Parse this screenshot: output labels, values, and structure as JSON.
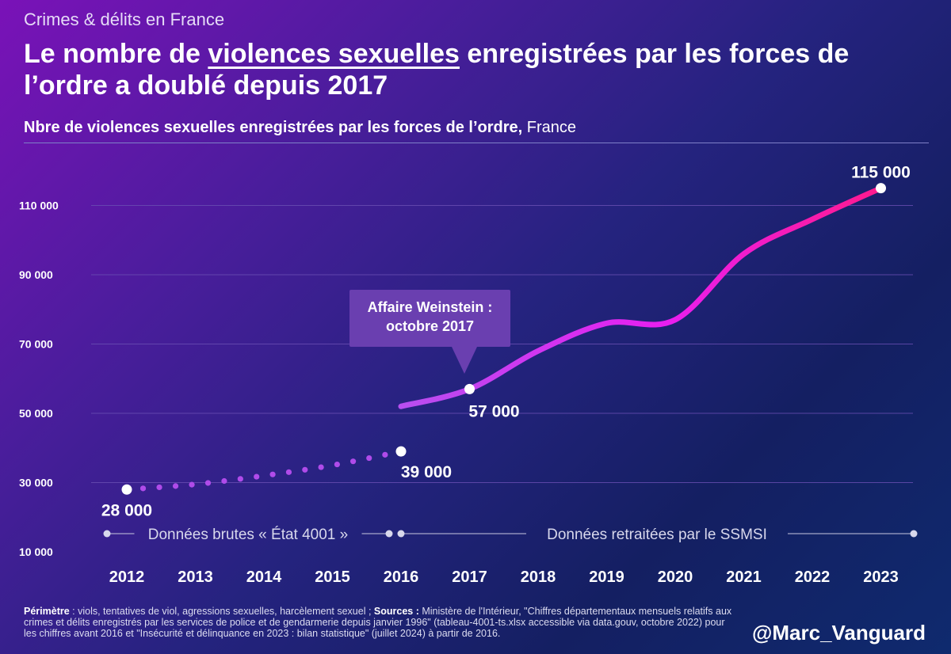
{
  "header": {
    "supertitle": "Crimes & délits en France",
    "title_pre": "Le nombre de ",
    "title_highlight": "violences sexuelles",
    "title_post": " enregistrées par les forces de l’ordre a doublé depuis 2017",
    "subtitle_bold": "Nbre de violences sexuelles enregistrées par les forces de l’ordre,",
    "subtitle_light": "France"
  },
  "annotation": {
    "line1": "Affaire Weinstein :",
    "line2": "octobre 2017"
  },
  "footer": {
    "perimetre_label": "Périmètre",
    "perimetre_text": " : viols, tentatives de viol, agressions sexuelles, harcèlement sexuel ; ",
    "sources_label": "Sources :",
    "sources_text": " Ministère de l'Intérieur, \"Chiffres départementaux mensuels relatifs aux crimes et délits enregistrés par les services de police et de gendarmerie depuis janvier 1996\" (tableau-4001-ts.xlsx accessible via data.gouv, octobre 2022) pour les chiffres avant 2016 et \"Insécurité et délinquance en 2023 : bilan statistique\" (juillet 2024) à partir de 2016.",
    "handle": "@Marc_Vanguard"
  },
  "colors": {
    "dotted_series": "#b04bea",
    "solid_start": "#b84ef0",
    "solid_mid": "#e81ef0",
    "solid_end": "#ff1a8c"
  },
  "chart_data": {
    "type": "line",
    "title": "Nbre de violences sexuelles enregistrées par les forces de l’ordre, France",
    "xlabel": "",
    "ylabel": "",
    "ylim": [
      10000,
      115000
    ],
    "yticks": [
      10000,
      30000,
      50000,
      70000,
      90000,
      110000
    ],
    "ytick_labels": [
      "10 000",
      "30 000",
      "50 000",
      "70 000",
      "90 000",
      "110 000"
    ],
    "categories": [
      "2012",
      "2013",
      "2014",
      "2015",
      "2016",
      "2017",
      "2018",
      "2019",
      "2020",
      "2021",
      "2022",
      "2023"
    ],
    "series": [
      {
        "name": "Données brutes « État 4001 »",
        "style": "dotted",
        "x": [
          2012,
          2013,
          2014,
          2015,
          2016
        ],
        "values": [
          28000,
          29500,
          32000,
          35000,
          39000
        ]
      },
      {
        "name": "Données retraitées par le SSMSI",
        "style": "solid",
        "x": [
          2016,
          2017,
          2018,
          2019,
          2020,
          2021,
          2022,
          2023
        ],
        "values": [
          52000,
          57000,
          68000,
          76000,
          77000,
          96000,
          106000,
          115000
        ]
      }
    ],
    "highlighted_points": [
      {
        "x": 2012,
        "value": 28000,
        "label": "28 000"
      },
      {
        "x": 2016,
        "value": 39000,
        "label": "39 000"
      },
      {
        "x": 2017,
        "value": 57000,
        "label": "57 000"
      },
      {
        "x": 2023,
        "value": 115000,
        "label": "115 000"
      }
    ],
    "period_labels": [
      {
        "from": 2012,
        "to": 2016,
        "label": "Données brutes « État 4001 »"
      },
      {
        "from": 2016,
        "to": 2023,
        "label": "Données retraitées par le SSMSI"
      }
    ],
    "grid": true
  }
}
